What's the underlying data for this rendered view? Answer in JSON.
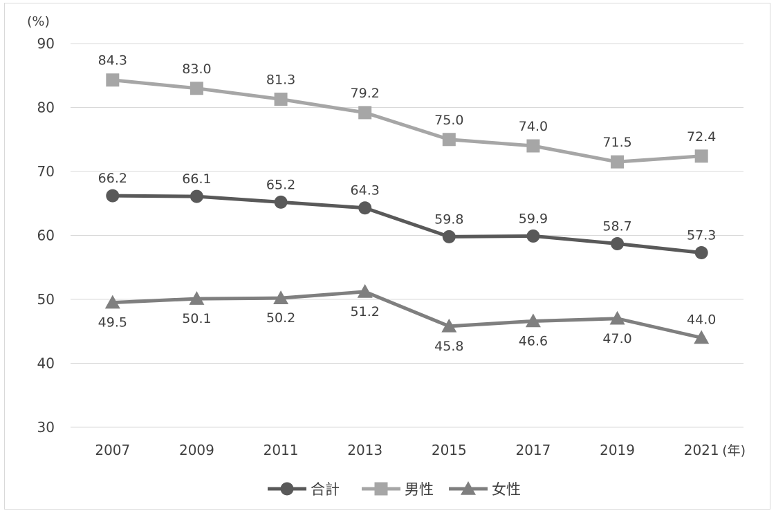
{
  "chart_data": {
    "type": "line",
    "y_unit_label": "(%)",
    "x_unit_label": "(年)",
    "categories": [
      "2007",
      "2009",
      "2011",
      "2013",
      "2015",
      "2017",
      "2019",
      "2021"
    ],
    "ylim": [
      30,
      90
    ],
    "yticks": [
      30,
      40,
      50,
      60,
      70,
      80,
      90
    ],
    "grid": true,
    "legend_position": "bottom",
    "series": [
      {
        "name": "合計",
        "marker": "circle",
        "color": "#595959",
        "values": [
          66.2,
          66.1,
          65.2,
          64.3,
          59.8,
          59.9,
          58.7,
          57.3
        ],
        "labels": [
          "66.2",
          "66.1",
          "65.2",
          "64.3",
          "59.8",
          "59.9",
          "58.7",
          "57.3"
        ]
      },
      {
        "name": "男性",
        "marker": "square",
        "color": "#a6a6a6",
        "values": [
          84.3,
          83.0,
          81.3,
          79.2,
          75.0,
          74.0,
          71.5,
          72.4
        ],
        "labels": [
          "84.3",
          "83.0",
          "81.3",
          "79.2",
          "75.0",
          "74.0",
          "71.5",
          "72.4"
        ]
      },
      {
        "name": "女性",
        "marker": "triangle",
        "color": "#7f7f7f",
        "values": [
          49.5,
          50.1,
          50.2,
          51.2,
          45.8,
          46.6,
          47.0,
          44.0
        ],
        "labels": [
          "49.5",
          "50.1",
          "50.2",
          "51.2",
          "45.8",
          "46.6",
          "47.0",
          "44.0"
        ]
      }
    ]
  }
}
